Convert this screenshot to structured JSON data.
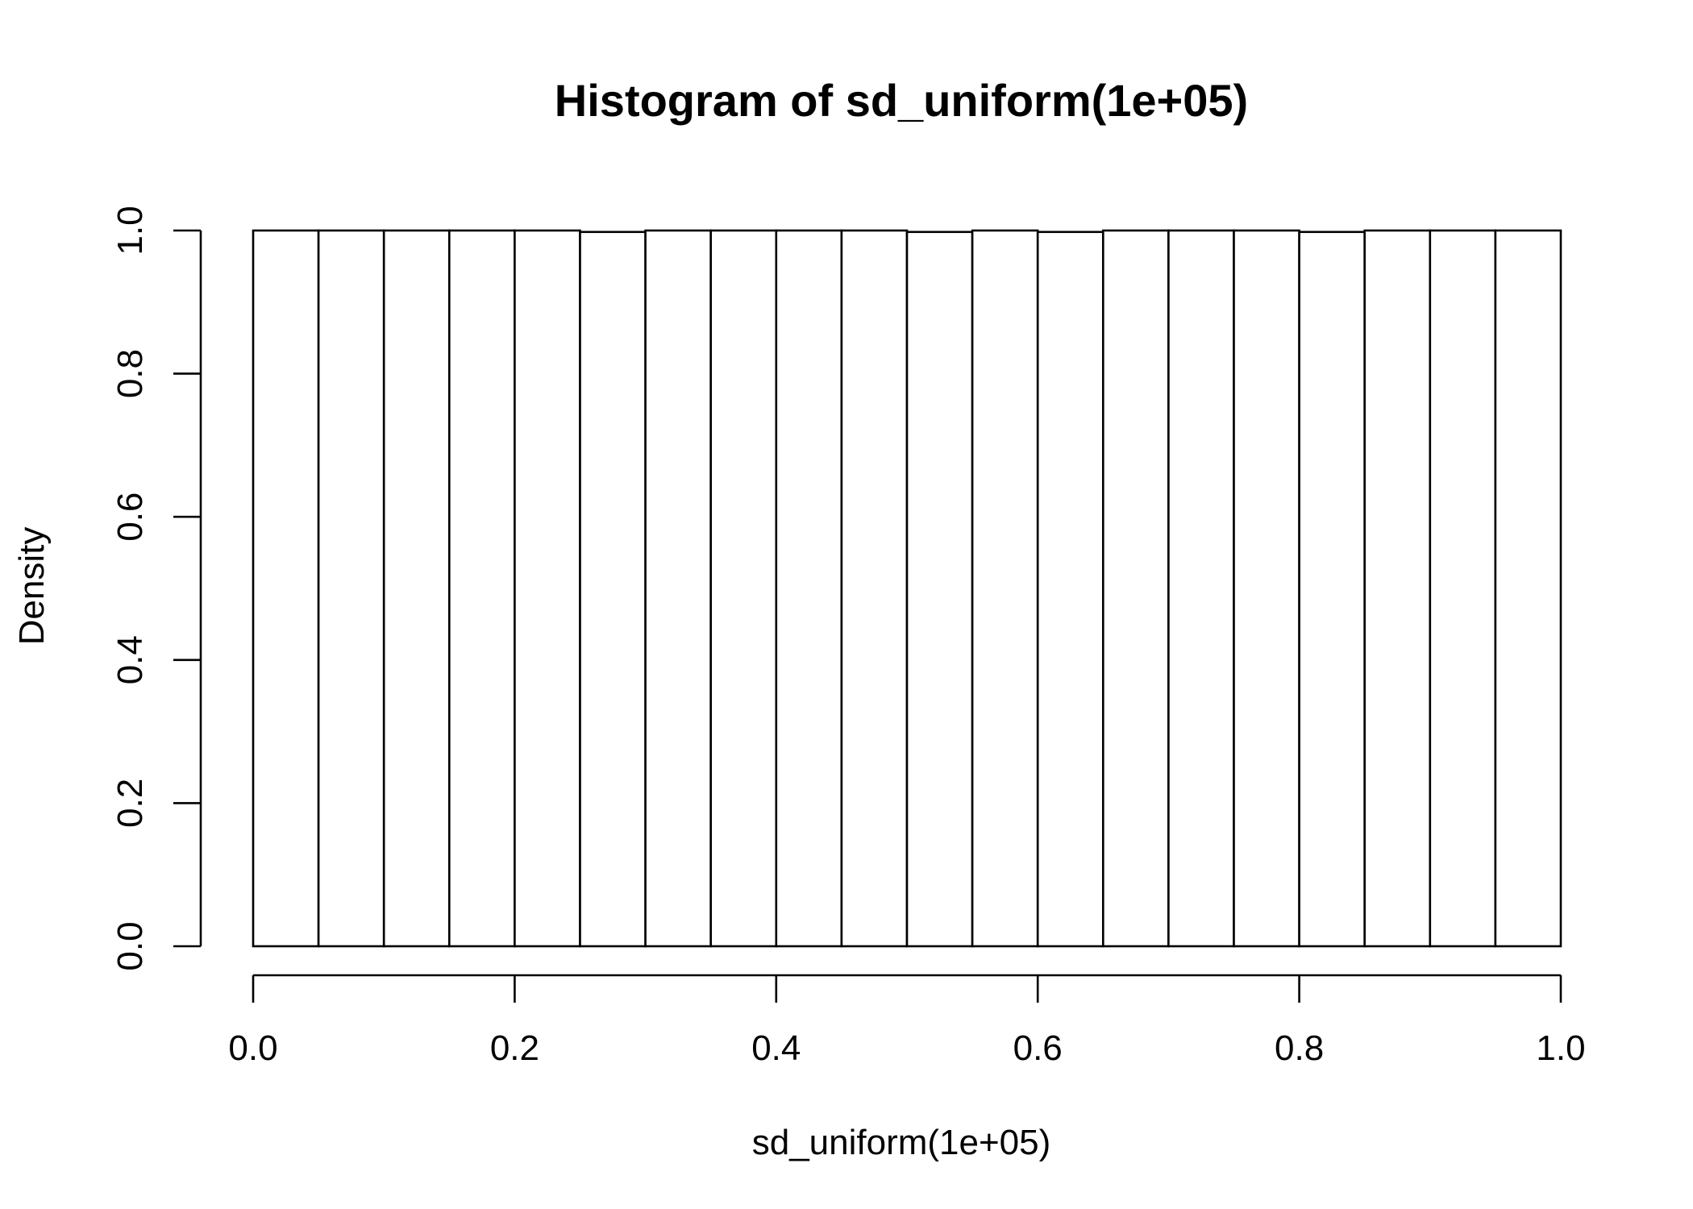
{
  "chart_data": {
    "type": "bar",
    "title": "Histogram of sd_uniform(1e+05)",
    "xlabel": "sd_uniform(1e+05)",
    "ylabel": "Density",
    "xlim": [
      0,
      1
    ],
    "ylim": [
      0,
      1
    ],
    "bin_edges": [
      0.0,
      0.05,
      0.1,
      0.15,
      0.2,
      0.25,
      0.3,
      0.35,
      0.4,
      0.45,
      0.5,
      0.55,
      0.6,
      0.65,
      0.7,
      0.75,
      0.8,
      0.85,
      0.9,
      0.95,
      1.0
    ],
    "values": [
      1.0,
      1.0,
      1.0,
      1.0,
      1.0,
      0.998,
      1.0,
      1.0,
      1.0,
      1.0,
      0.998,
      1.0,
      0.998,
      1.0,
      1.0,
      1.0,
      0.998,
      1.0,
      1.0,
      1.0
    ],
    "x_ticks": [
      0.0,
      0.2,
      0.4,
      0.6,
      0.8,
      1.0
    ],
    "x_tick_labels": [
      "0.0",
      "0.2",
      "0.4",
      "0.6",
      "0.8",
      "1.0"
    ],
    "y_ticks": [
      0.0,
      0.2,
      0.4,
      0.6,
      0.8,
      1.0
    ],
    "y_tick_labels": [
      "0.0",
      "0.2",
      "0.4",
      "0.6",
      "0.8",
      "1.0"
    ],
    "grid": false,
    "legend": "none",
    "colors": {
      "bar_fill": "#ffffff",
      "bar_stroke": "#000000",
      "background": "#ffffff"
    }
  }
}
